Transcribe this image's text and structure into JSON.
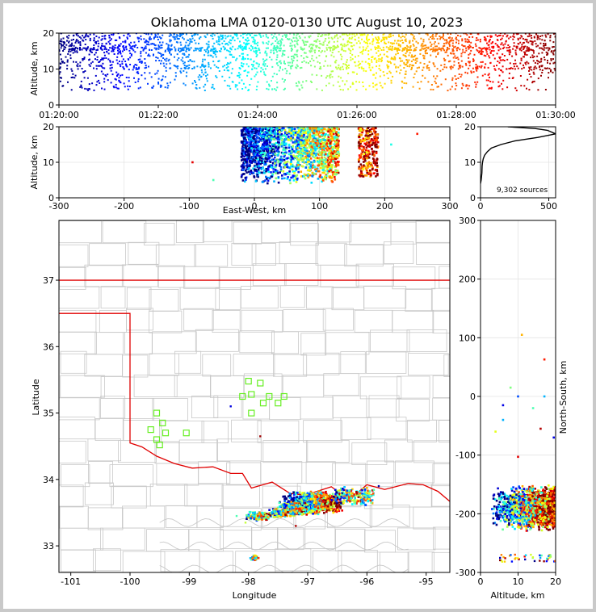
{
  "figure": {
    "title": "Oklahoma LMA 0120-0130 UTC August 10, 2023",
    "source_count_label": "9,302 sources"
  },
  "chart_data": [
    {
      "type": "scatter",
      "panel": "altitude-vs-time",
      "xlabel": "",
      "ylabel": "Altitude, km",
      "x_ticks": [
        "01:20:00",
        "01:22:00",
        "01:24:00",
        "01:26:00",
        "01:28:00",
        "01:30:00"
      ],
      "xlim_minutes": [
        0,
        10
      ],
      "ylim": [
        0,
        20
      ],
      "y_ticks": [
        0,
        10,
        20
      ],
      "color_encoding": "time (blue to red, jet colormap)",
      "points_note": "dense source points between 5 and 20 km altitude; colored by time",
      "sources": 9302
    },
    {
      "type": "scatter",
      "panel": "altitude-vs-east-west",
      "xlabel": "East-West, km",
      "ylabel": "Altitude, km",
      "xlim": [
        -300,
        300
      ],
      "x_ticks": [
        -300,
        -200,
        -100,
        0,
        100,
        200,
        300
      ],
      "ylim": [
        0,
        20
      ],
      "y_ticks": [
        0,
        10,
        20
      ],
      "clusters": [
        {
          "x_range": [
            -20,
            130
          ],
          "y_range": [
            4,
            20
          ]
        },
        {
          "x_range": [
            160,
            190
          ],
          "y_range": [
            6,
            20
          ]
        }
      ]
    },
    {
      "type": "line",
      "panel": "altitude-histogram",
      "xlim": [
        0,
        550
      ],
      "x_ticks": [
        0,
        500
      ],
      "ylim": [
        0,
        20
      ],
      "y_ticks": [
        0,
        10,
        20
      ],
      "x": [
        0,
        5,
        10,
        12,
        15,
        20,
        30,
        50,
        80,
        150,
        250,
        420,
        550,
        490,
        400,
        200
      ],
      "y": [
        4,
        5,
        7,
        9,
        10,
        11,
        12,
        13,
        14,
        15,
        16,
        17,
        18,
        19,
        19.5,
        20
      ]
    },
    {
      "type": "scatter",
      "panel": "plan-view-map",
      "xlabel": "Longitude",
      "ylabel": "Latitude",
      "xlim": [
        -101.2,
        -94.6
      ],
      "x_ticks": [
        -101,
        -100,
        -99,
        -98,
        -97,
        -96,
        -95
      ],
      "ylim": [
        32.6,
        37.9
      ],
      "y_ticks": [
        33,
        34,
        35,
        36,
        37
      ],
      "station_markers": [
        [
          -99.55,
          35.0
        ],
        [
          -99.45,
          34.85
        ],
        [
          -99.65,
          34.75
        ],
        [
          -99.4,
          34.7
        ],
        [
          -99.55,
          34.6
        ],
        [
          -99.5,
          34.52
        ],
        [
          -99.05,
          34.7
        ],
        [
          -98.0,
          35.48
        ],
        [
          -97.8,
          35.45
        ],
        [
          -97.95,
          35.28
        ],
        [
          -98.1,
          35.25
        ],
        [
          -97.75,
          35.15
        ],
        [
          -97.65,
          35.25
        ],
        [
          -97.5,
          35.15
        ],
        [
          -97.4,
          35.25
        ],
        [
          -97.95,
          35.0
        ]
      ],
      "sources_note": "storm band along latitude 33.3-33.9, longitude -98.1 to -96.0"
    },
    {
      "type": "scatter",
      "panel": "north-south-vs-altitude",
      "xlabel": "Altitude, km",
      "ylabel": "North-South, km",
      "xlim": [
        0,
        20
      ],
      "x_ticks": [
        0,
        10,
        20
      ],
      "ylim": [
        -300,
        300
      ],
      "y_ticks": [
        -300,
        -200,
        -100,
        0,
        100,
        200,
        300
      ]
    }
  ]
}
